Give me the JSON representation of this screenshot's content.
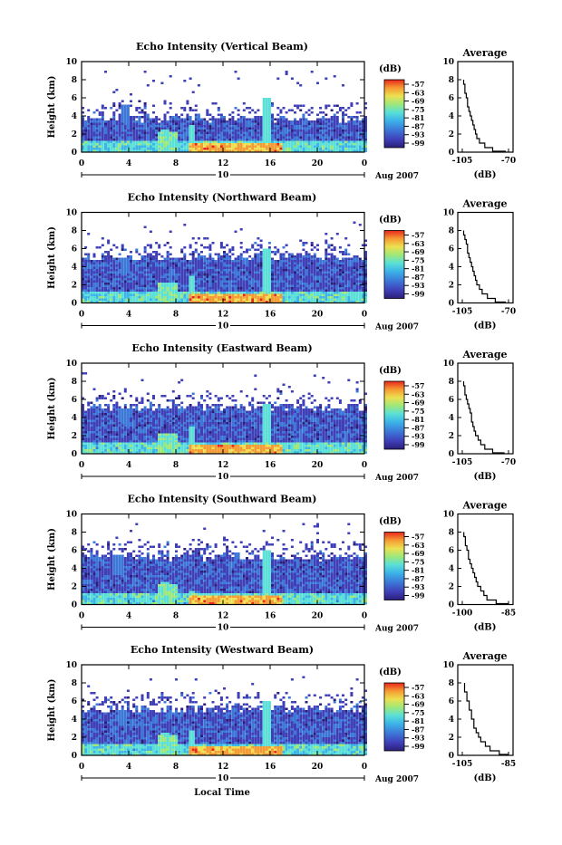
{
  "figure": {
    "ylabel": "Height (km)",
    "xlabel": "Local Time",
    "date_label": "Aug 2007",
    "day_label": "10",
    "colorbar_unit": "(dB)",
    "avg_title": "Average",
    "avg_xlabel": "(dB)"
  },
  "chart_data": [
    {
      "type": "heatmap",
      "title": "Echo Intensity (Vertical Beam)",
      "ylabel": "Height (km)",
      "x_ticks": [
        "0",
        "4",
        "8",
        "12",
        "16",
        "20",
        "0"
      ],
      "y_ticks": [
        "0",
        "2",
        "4",
        "6",
        "8",
        "10"
      ],
      "xlim": [
        0,
        24
      ],
      "ylim": [
        0,
        10
      ],
      "colorbar": {
        "label": "(dB)",
        "ticks": [
          "-57",
          "-63",
          "-69",
          "-75",
          "-81",
          "-87",
          "-93",
          "-99"
        ]
      },
      "features": {
        "top": 3.6,
        "spikes": [
          [
            7.0,
            2.4
          ],
          [
            9.3,
            2.8
          ],
          [
            15.6,
            6.0
          ],
          [
            17.5,
            1.2
          ]
        ],
        "plume": [
          3.6,
          5.2
        ]
      },
      "average_profile": {
        "title": "Average",
        "xlabel": "(dB)",
        "xticks": [
          "-105",
          "-70"
        ],
        "xlim": [
          -105,
          -70
        ],
        "ylim": [
          0,
          10
        ],
        "yticks": [
          "0",
          "2",
          "4",
          "6",
          "8",
          "10"
        ],
        "height": [
          0.1,
          0.5,
          1.0,
          1.5,
          2.0,
          2.5,
          3.0,
          3.5,
          4.0,
          4.5,
          5.0,
          5.5,
          6.0,
          6.5,
          7.0,
          7.5,
          8.0
        ],
        "db": [
          -72,
          -82,
          -88,
          -92,
          -94,
          -95,
          -96,
          -97,
          -98,
          -99,
          -100,
          -101,
          -101,
          -102,
          -103,
          -103,
          -104
        ]
      }
    },
    {
      "type": "heatmap",
      "title": "Echo Intensity (Northward Beam)",
      "ylabel": "Height (km)",
      "x_ticks": [
        "0",
        "4",
        "8",
        "12",
        "16",
        "20",
        "0"
      ],
      "y_ticks": [
        "0",
        "2",
        "4",
        "6",
        "8",
        "10"
      ],
      "xlim": [
        0,
        24
      ],
      "ylim": [
        0,
        10
      ],
      "colorbar": {
        "label": "(dB)",
        "ticks": [
          "-57",
          "-63",
          "-69",
          "-75",
          "-81",
          "-87",
          "-93",
          "-99"
        ]
      },
      "features": {
        "top": 5.0,
        "spikes": [
          [
            7.0,
            2.2
          ],
          [
            9.3,
            3.0
          ],
          [
            15.6,
            6.0
          ],
          [
            19.5,
            1.0
          ]
        ],
        "plume": [
          3.6,
          5.0
        ]
      },
      "average_profile": {
        "title": "Average",
        "xlabel": "(dB)",
        "xticks": [
          "-105",
          "-70"
        ],
        "xlim": [
          -105,
          -70
        ],
        "ylim": [
          0,
          10
        ],
        "yticks": [
          "0",
          "2",
          "4",
          "6",
          "8",
          "10"
        ],
        "height": [
          0.1,
          0.5,
          1.0,
          1.5,
          2.0,
          2.5,
          3.0,
          3.5,
          4.0,
          4.5,
          5.0,
          5.5,
          6.0,
          6.5,
          7.0,
          7.5,
          8.0
        ],
        "db": [
          -72,
          -80,
          -86,
          -90,
          -92,
          -94,
          -95,
          -96,
          -97,
          -98,
          -99,
          -100,
          -101,
          -101,
          -102,
          -103,
          -104
        ]
      }
    },
    {
      "type": "heatmap",
      "title": "Echo Intensity (Eastward Beam)",
      "ylabel": "Height (km)",
      "x_ticks": [
        "0",
        "4",
        "8",
        "12",
        "16",
        "20",
        "0"
      ],
      "y_ticks": [
        "0",
        "2",
        "4",
        "6",
        "8",
        "10"
      ],
      "xlim": [
        0,
        24
      ],
      "ylim": [
        0,
        10
      ],
      "colorbar": {
        "label": "(dB)",
        "ticks": [
          "-57",
          "-63",
          "-69",
          "-75",
          "-81",
          "-87",
          "-93",
          "-99"
        ]
      },
      "features": {
        "top": 5.0,
        "spikes": [
          [
            7.0,
            2.0
          ],
          [
            9.3,
            2.8
          ],
          [
            15.6,
            5.5
          ],
          [
            19.5,
            1.0
          ]
        ],
        "plume": [
          3.6,
          5.0
        ]
      },
      "average_profile": {
        "title": "Average",
        "xlabel": "(dB)",
        "xticks": [
          "-105",
          "-70"
        ],
        "xlim": [
          -105,
          -70
        ],
        "ylim": [
          0,
          10
        ],
        "yticks": [
          "0",
          "2",
          "4",
          "6",
          "8",
          "10"
        ],
        "height": [
          0.1,
          0.5,
          1.0,
          1.5,
          2.0,
          2.5,
          3.0,
          3.5,
          4.0,
          4.5,
          5.0,
          5.5,
          6.0,
          6.5,
          7.0,
          7.5,
          8.0
        ],
        "db": [
          -73,
          -82,
          -88,
          -91,
          -93,
          -95,
          -96,
          -97,
          -98,
          -98,
          -99,
          -100,
          -101,
          -102,
          -103,
          -103,
          -104
        ]
      }
    },
    {
      "type": "heatmap",
      "title": "Echo Intensity (Southward Beam)",
      "ylabel": "Height (km)",
      "x_ticks": [
        "0",
        "4",
        "8",
        "12",
        "16",
        "20",
        "0"
      ],
      "y_ticks": [
        "0",
        "2",
        "4",
        "6",
        "8",
        "10"
      ],
      "xlim": [
        0,
        24
      ],
      "ylim": [
        0,
        10
      ],
      "colorbar": {
        "label": "(dB)",
        "ticks": [
          "-57",
          "-63",
          "-69",
          "-75",
          "-81",
          "-87",
          "-93",
          "-99"
        ]
      },
      "features": {
        "top": 5.2,
        "spikes": [
          [
            7.0,
            2.4
          ],
          [
            9.3,
            1.5
          ],
          [
            15.6,
            6.0
          ],
          [
            19.5,
            1.0
          ]
        ],
        "plume": [
          3.0,
          5.5
        ]
      },
      "average_profile": {
        "title": "Average",
        "xlabel": "(dB)",
        "xticks": [
          "-100",
          "-85"
        ],
        "xlim": [
          -100,
          -85
        ],
        "ylim": [
          0,
          10
        ],
        "yticks": [
          "0",
          "2",
          "4",
          "6",
          "8",
          "10"
        ],
        "height": [
          0.1,
          0.5,
          1.0,
          1.5,
          2.0,
          2.5,
          3.0,
          3.5,
          4.0,
          4.5,
          5.0,
          5.5,
          6.0,
          6.5,
          7.0,
          7.5,
          8.0
        ],
        "db": [
          -85,
          -89,
          -92,
          -93,
          -94,
          -95,
          -95.5,
          -96,
          -96.5,
          -97,
          -97.5,
          -98,
          -98,
          -98.5,
          -99,
          -99,
          -99.5
        ]
      }
    },
    {
      "type": "heatmap",
      "title": "Echo Intensity (Westward Beam)",
      "ylabel": "Height (km)",
      "x_ticks": [
        "0",
        "4",
        "8",
        "12",
        "16",
        "20",
        "0"
      ],
      "y_ticks": [
        "0",
        "2",
        "4",
        "6",
        "8",
        "10"
      ],
      "xlim": [
        0,
        24
      ],
      "ylim": [
        0,
        10
      ],
      "colorbar": {
        "label": "(dB)",
        "ticks": [
          "-57",
          "-63",
          "-69",
          "-75",
          "-81",
          "-87",
          "-93",
          "-99"
        ]
      },
      "features": {
        "top": 5.0,
        "spikes": [
          [
            7.0,
            2.4
          ],
          [
            9.3,
            2.6
          ],
          [
            15.6,
            6.0
          ],
          [
            19.5,
            1.2
          ]
        ],
        "plume": [
          3.3,
          5.0
        ]
      },
      "average_profile": {
        "title": "Average",
        "xlabel": "(dB)",
        "xticks": [
          "-105",
          "-85"
        ],
        "xlim": [
          -105,
          -85
        ],
        "ylim": [
          0,
          10
        ],
        "yticks": [
          "0",
          "2",
          "4",
          "6",
          "8",
          "10"
        ],
        "height": [
          0.1,
          0.5,
          1.0,
          1.5,
          2.0,
          2.5,
          3.0,
          3.5,
          4.0,
          4.5,
          5.0,
          5.5,
          6.0,
          6.5,
          7.0,
          7.5,
          8.0
        ],
        "db": [
          -85,
          -89,
          -93,
          -95,
          -97,
          -98,
          -99,
          -100,
          -100,
          -101,
          -101,
          -102,
          -102,
          -103,
          -103,
          -104,
          -104
        ]
      }
    }
  ]
}
